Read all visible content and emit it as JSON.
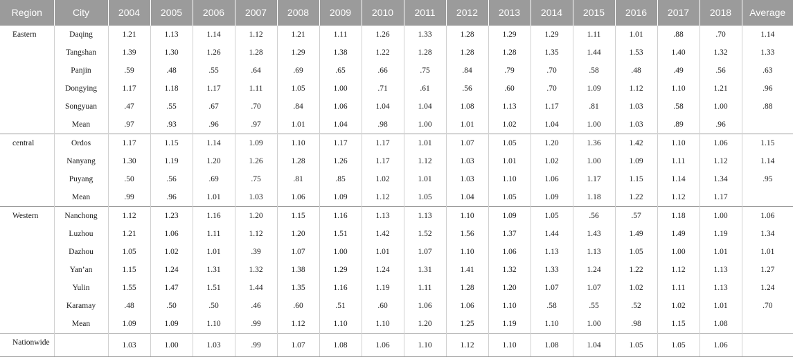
{
  "header": [
    "Region",
    "City",
    "2004",
    "2005",
    "2006",
    "2007",
    "2008",
    "2009",
    "2010",
    "2011",
    "2012",
    "2013",
    "2014",
    "2015",
    "2016",
    "2017",
    "2018",
    "Average"
  ],
  "groups": [
    {
      "region": "Eastern",
      "rows": [
        {
          "city": "Daqing",
          "values": [
            "1.21",
            "1.13",
            "1.14",
            "1.12",
            "1.21",
            "1.11",
            "1.26",
            "1.33",
            "1.28",
            "1.29",
            "1.29",
            "1.11",
            "1.01",
            ".88",
            ".70"
          ],
          "average": "1.14"
        },
        {
          "city": "Tangshan",
          "values": [
            "1.39",
            "1.30",
            "1.26",
            "1.28",
            "1.29",
            "1.38",
            "1.22",
            "1.28",
            "1.28",
            "1.28",
            "1.35",
            "1.44",
            "1.53",
            "1.40",
            "1.32"
          ],
          "average": "1.33"
        },
        {
          "city": "Panjin",
          "values": [
            ".59",
            ".48",
            ".55",
            ".64",
            ".69",
            ".65",
            ".66",
            ".75",
            ".84",
            ".79",
            ".70",
            ".58",
            ".48",
            ".49",
            ".56"
          ],
          "average": ".63"
        },
        {
          "city": "Dongying",
          "values": [
            "1.17",
            "1.18",
            "1.17",
            "1.11",
            "1.05",
            "1.00",
            ".71",
            ".61",
            ".56",
            ".60",
            ".70",
            "1.09",
            "1.12",
            "1.10",
            "1.21"
          ],
          "average": ".96"
        },
        {
          "city": "Songyuan",
          "values": [
            ".47",
            ".55",
            ".67",
            ".70",
            ".84",
            "1.06",
            "1.04",
            "1.04",
            "1.08",
            "1.13",
            "1.17",
            ".81",
            "1.03",
            ".58",
            "1.00"
          ],
          "average": ".88"
        },
        {
          "city": "Mean",
          "values": [
            ".97",
            ".93",
            ".96",
            ".97",
            "1.01",
            "1.04",
            ".98",
            "1.00",
            "1.01",
            "1.02",
            "1.04",
            "1.00",
            "1.03",
            ".89",
            ".96"
          ],
          "average": ""
        }
      ]
    },
    {
      "region": "central",
      "rows": [
        {
          "city": "Ordos",
          "values": [
            "1.17",
            "1.15",
            "1.14",
            "1.09",
            "1.10",
            "1.17",
            "1.17",
            "1.01",
            "1.07",
            "1.05",
            "1.20",
            "1.36",
            "1.42",
            "1.10",
            "1.06"
          ],
          "average": "1.15"
        },
        {
          "city": "Nanyang",
          "values": [
            "1.30",
            "1.19",
            "1.20",
            "1.26",
            "1.28",
            "1.26",
            "1.17",
            "1.12",
            "1.03",
            "1.01",
            "1.02",
            "1.00",
            "1.09",
            "1.11",
            "1.12"
          ],
          "average": "1.14"
        },
        {
          "city": "Puyang",
          "values": [
            ".50",
            ".56",
            ".69",
            ".75",
            ".81",
            ".85",
            "1.02",
            "1.01",
            "1.03",
            "1.10",
            "1.06",
            "1.17",
            "1.15",
            "1.14",
            "1.34"
          ],
          "average": ".95"
        },
        {
          "city": "Mean",
          "values": [
            ".99",
            ".96",
            "1.01",
            "1.03",
            "1.06",
            "1.09",
            "1.12",
            "1.05",
            "1.04",
            "1.05",
            "1.09",
            "1.18",
            "1.22",
            "1.12",
            "1.17"
          ],
          "average": ""
        }
      ]
    },
    {
      "region": "Western",
      "rows": [
        {
          "city": "Nanchong",
          "values": [
            "1.12",
            "1.23",
            "1.16",
            "1.20",
            "1.15",
            "1.16",
            "1.13",
            "1.13",
            "1.10",
            "1.09",
            "1.05",
            ".56",
            ".57",
            "1.18",
            "1.00"
          ],
          "average": "1.06"
        },
        {
          "city": "Luzhou",
          "values": [
            "1.21",
            "1.06",
            "1.11",
            "1.12",
            "1.20",
            "1.51",
            "1.42",
            "1.52",
            "1.56",
            "1.37",
            "1.44",
            "1.43",
            "1.49",
            "1.49",
            "1.19"
          ],
          "average": "1.34"
        },
        {
          "city": "Dazhou",
          "values": [
            "1.05",
            "1.02",
            "1.01",
            ".39",
            "1.07",
            "1.00",
            "1.01",
            "1.07",
            "1.10",
            "1.06",
            "1.13",
            "1.13",
            "1.05",
            "1.00",
            "1.01"
          ],
          "average": "1.01"
        },
        {
          "city": "Yan’an",
          "values": [
            "1.15",
            "1.24",
            "1.31",
            "1.32",
            "1.38",
            "1.29",
            "1.24",
            "1.31",
            "1.41",
            "1.32",
            "1.33",
            "1.24",
            "1.22",
            "1.12",
            "1.13"
          ],
          "average": "1.27"
        },
        {
          "city": "Yulin",
          "values": [
            "1.55",
            "1.47",
            "1.51",
            "1.44",
            "1.35",
            "1.16",
            "1.19",
            "1.11",
            "1.28",
            "1.20",
            "1.07",
            "1.07",
            "1.02",
            "1.11",
            "1.13"
          ],
          "average": "1.24"
        },
        {
          "city": "Karamay",
          "values": [
            ".48",
            ".50",
            ".50",
            ".46",
            ".60",
            ".51",
            ".60",
            "1.06",
            "1.06",
            "1.10",
            ".58",
            ".55",
            ".52",
            "1.02",
            "1.01"
          ],
          "average": ".70"
        },
        {
          "city": "Mean",
          "values": [
            "1.09",
            "1.09",
            "1.10",
            ".99",
            "1.12",
            "1.10",
            "1.10",
            "1.20",
            "1.25",
            "1.19",
            "1.10",
            "1.00",
            ".98",
            "1.15",
            "1.08"
          ],
          "average": ""
        }
      ]
    },
    {
      "region": "Nationwide",
      "rows": [
        {
          "city": "",
          "values": [
            "1.03",
            "1.00",
            "1.03",
            ".99",
            "1.07",
            "1.08",
            "1.06",
            "1.10",
            "1.12",
            "1.10",
            "1.08",
            "1.04",
            "1.05",
            "1.05",
            "1.06"
          ],
          "average": ""
        }
      ]
    }
  ]
}
